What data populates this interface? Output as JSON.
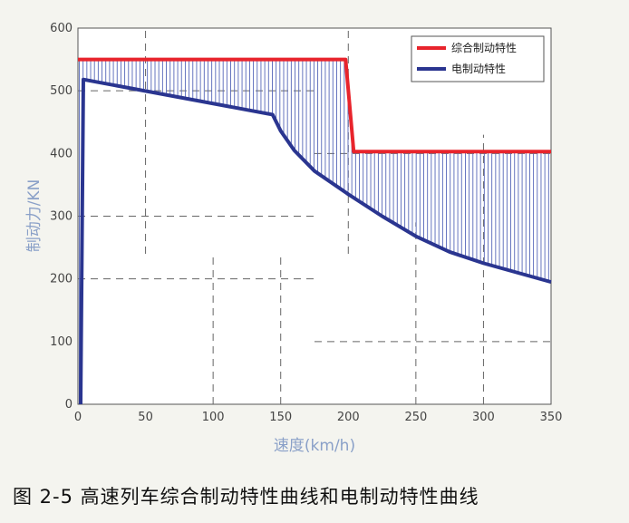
{
  "caption": "图 2-5 高速列车综合制动特性曲线和电制动特性曲线",
  "chart_data": {
    "type": "line",
    "xlabel": "速度(km/h)",
    "ylabel": "制动力/KN",
    "xlim": [
      0,
      350
    ],
    "ylim": [
      0,
      600
    ],
    "xticks": [
      0,
      50,
      100,
      150,
      200,
      250,
      300,
      350
    ],
    "yticks": [
      0,
      100,
      200,
      300,
      400,
      500,
      600
    ],
    "legend_position": "top-right",
    "fill_between": "vertical hatch between the two curves",
    "series": [
      {
        "name": "综合制动特性",
        "color": "#e8242c",
        "x": [
          0,
          198,
          204,
          350
        ],
        "y": [
          550,
          550,
          403,
          403
        ]
      },
      {
        "name": "电制动特性",
        "color": "#2a3590",
        "x": [
          2,
          4,
          144,
          150,
          160,
          175,
          200,
          225,
          250,
          275,
          300,
          325,
          350
        ],
        "y": [
          0,
          518,
          462,
          436,
          405,
          372,
          335,
          300,
          268,
          243,
          225,
          210,
          195
        ]
      }
    ]
  }
}
